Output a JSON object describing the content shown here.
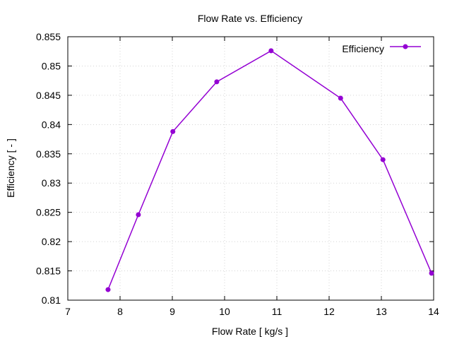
{
  "chart_data": {
    "type": "line",
    "title": "Flow Rate  vs. Efficiency",
    "xlabel": "Flow Rate [ kg/s ]",
    "ylabel": "Efficiency [ - ]",
    "xlim": [
      7,
      14
    ],
    "ylim": [
      0.81,
      0.855
    ],
    "xticks": [
      7,
      8,
      9,
      10,
      11,
      12,
      13,
      14
    ],
    "xtick_labels": [
      "7",
      "8",
      "9",
      "10",
      "11",
      "12",
      "13",
      "14"
    ],
    "yticks": [
      0.81,
      0.815,
      0.82,
      0.825,
      0.83,
      0.835,
      0.84,
      0.845,
      0.85,
      0.855
    ],
    "ytick_labels": [
      "0.81",
      "0.815",
      "0.82",
      "0.825",
      "0.83",
      "0.835",
      "0.84",
      "0.845",
      "0.85",
      "0.855"
    ],
    "grid": true,
    "legend_position": "top-right",
    "series": [
      {
        "name": "Efficiency",
        "color": "#9400d3",
        "x": [
          7.77,
          8.35,
          9.01,
          9.85,
          10.89,
          12.22,
          13.03,
          13.96
        ],
        "y": [
          0.8118,
          0.8246,
          0.8388,
          0.8473,
          0.8526,
          0.8445,
          0.834,
          0.8146
        ]
      }
    ]
  }
}
